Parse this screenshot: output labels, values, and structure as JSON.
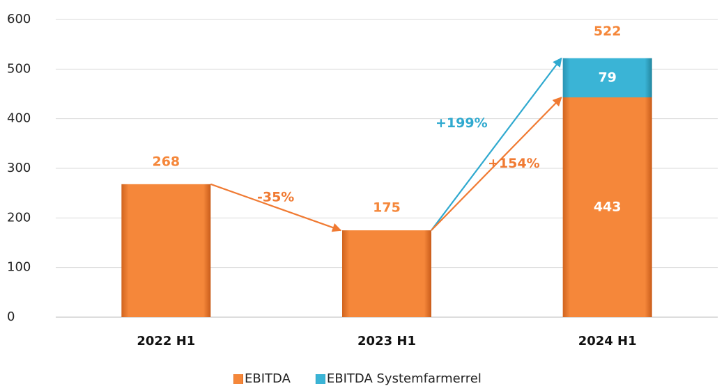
{
  "chart_data": {
    "type": "stacked_bar",
    "categories": [
      "2022 H1",
      "2023 H1",
      "2024 H1"
    ],
    "series": [
      {
        "name": "EBITDA",
        "color": "#f5873a",
        "values": [
          268,
          175,
          443
        ]
      },
      {
        "name": "EBITDA Systemfarmerrel",
        "color": "#3ab4d6",
        "values": [
          null,
          null,
          79
        ]
      }
    ],
    "totals": [
      null,
      null,
      522
    ],
    "annotations": [
      {
        "text": "-35%",
        "color": "#f07a32"
      },
      {
        "text": "+199%",
        "color": "#2fa9cf"
      },
      {
        "text": "+154%",
        "color": "#f07a32"
      }
    ],
    "ylim": [
      0,
      600
    ],
    "yticks": [
      0,
      100,
      200,
      300,
      400,
      500,
      600
    ],
    "grid": true,
    "legend": "bottom"
  }
}
